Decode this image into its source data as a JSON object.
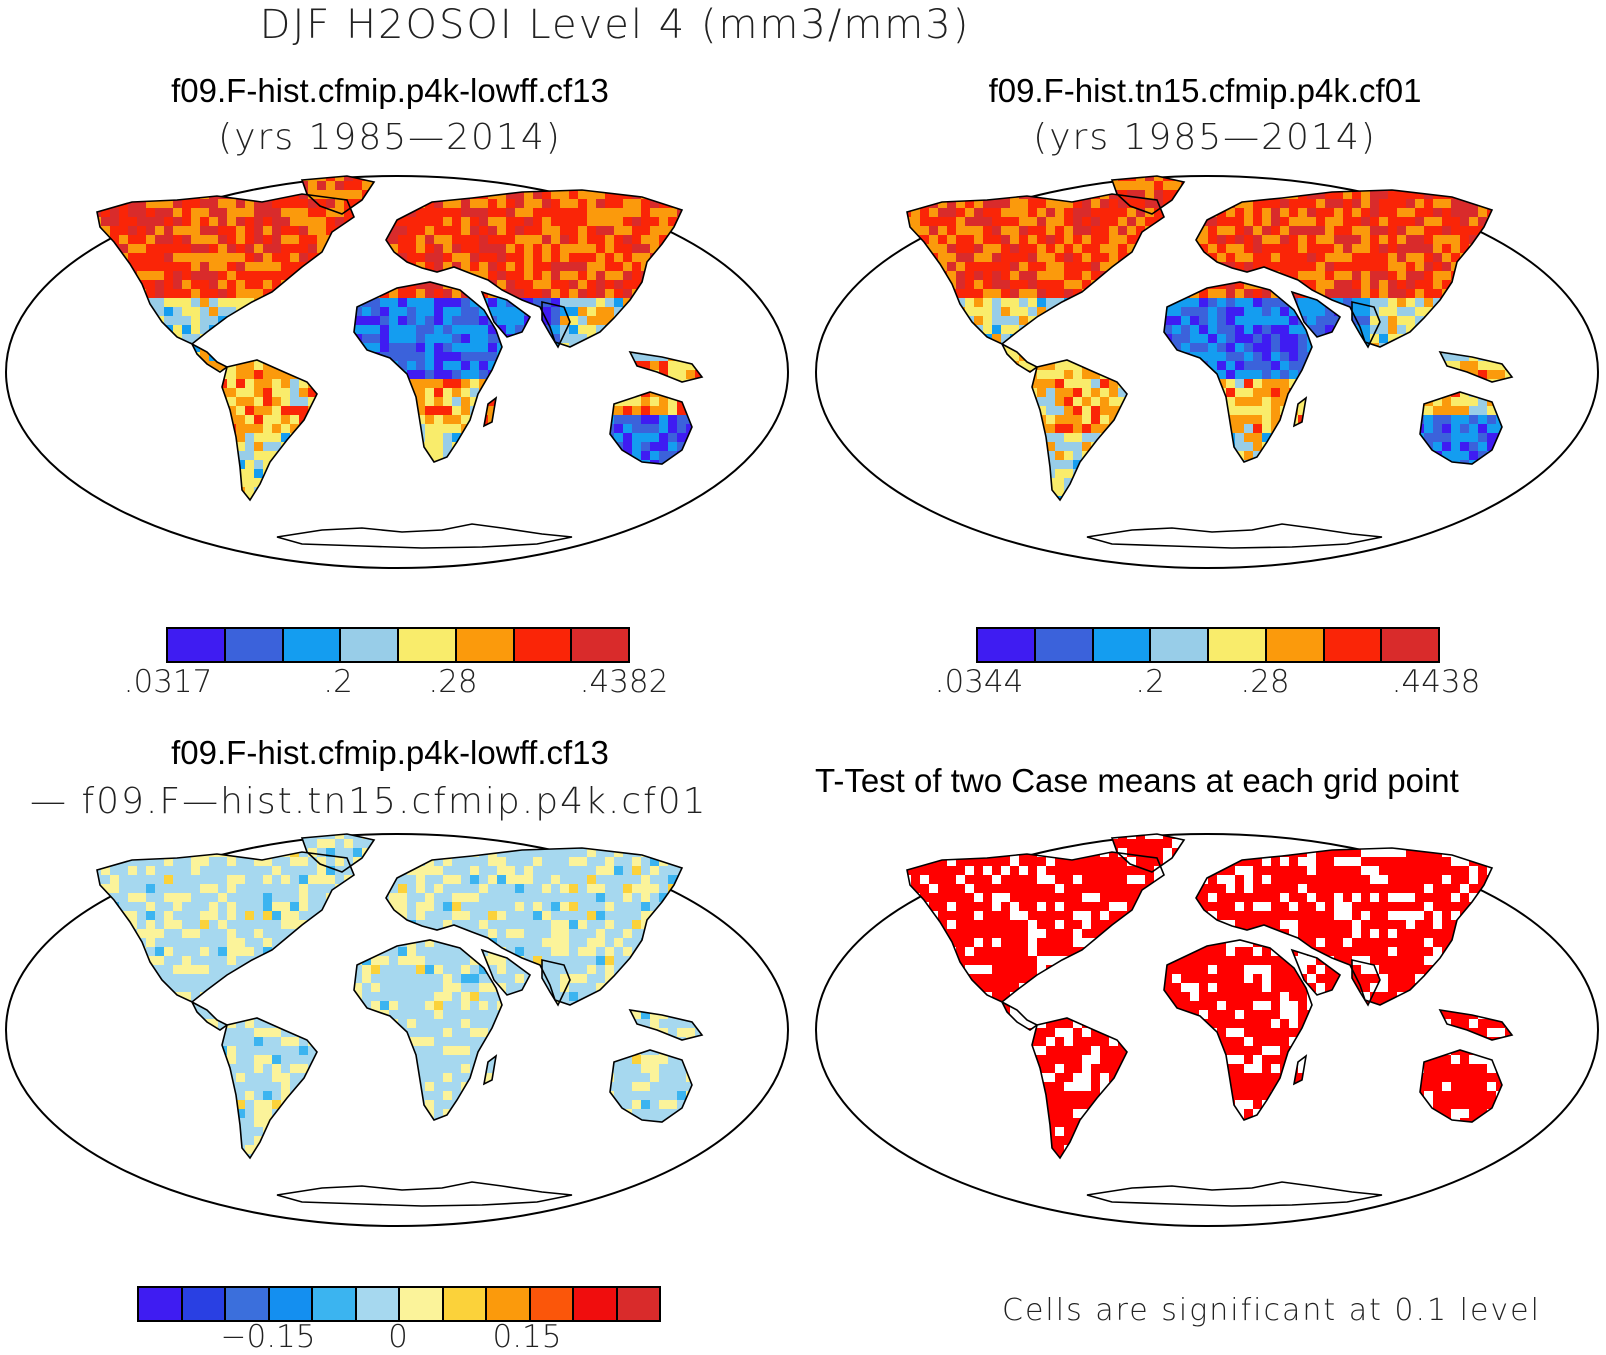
{
  "figure": {
    "title": "DJF H2OSOI Level 4 (mm3/mm3)"
  },
  "panels": {
    "p1": {
      "title": "f09.F-hist.cfmip.p4k-lowff.cf13",
      "subtitle": "(yrs 1985—2014)",
      "colorbar": {
        "colors": [
          "#3f1cf2",
          "#3b62db",
          "#149df0",
          "#98cde8",
          "#f9ec6b",
          "#fb9a0c",
          "#fa2507",
          "#d92b2b"
        ],
        "ticks": [
          ".0317",
          ".2",
          ".28",
          ".4382"
        ]
      }
    },
    "p2": {
      "title": "f09.F-hist.tn15.cfmip.p4k.cf01",
      "subtitle": "(yrs 1985—2014)",
      "colorbar": {
        "colors": [
          "#3f1cf2",
          "#3b62db",
          "#149df0",
          "#98cde8",
          "#f9ec6b",
          "#fb9a0c",
          "#fa2507",
          "#d92b2b"
        ],
        "ticks": [
          ".0344",
          ".2",
          ".28",
          ".4438"
        ]
      }
    },
    "p3": {
      "title": "f09.F-hist.cfmip.p4k-lowff.cf13",
      "subtitle": "— f09.F—hist.tn15.cfmip.p4k.cf01",
      "colorbar": {
        "colors": [
          "#3f1cf2",
          "#2940e3",
          "#3b6fdc",
          "#148ff0",
          "#3bb4f0",
          "#a6d8ef",
          "#fbf39a",
          "#fbd23a",
          "#fb9a0c",
          "#fb560a",
          "#f00d0d",
          "#d92b2b"
        ],
        "ticks": [
          "−0.15",
          "0",
          "0.15"
        ]
      }
    },
    "p4": {
      "title": "T-Test of two Case means at each grid point",
      "note": "Cells are significant at 0.1 level",
      "significance_color": "#ff0000"
    }
  }
}
